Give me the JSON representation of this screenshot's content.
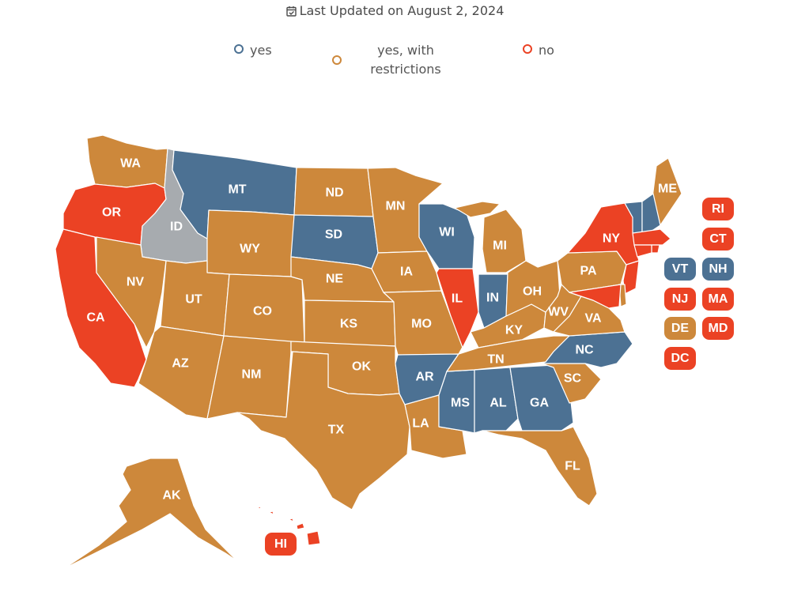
{
  "header": {
    "updated_text": "Last Updated on August 2, 2024"
  },
  "colors": {
    "yes": "#4c7193",
    "restricted": "#cd883b",
    "no": "#eb4224",
    "unknown": "#a7abaf"
  },
  "legend": {
    "yes": "yes",
    "restricted_line1": "yes, with",
    "restricted_line2": "restrictions",
    "no": "no"
  },
  "states": {
    "WA": "restricted",
    "OR": "no",
    "CA": "no",
    "ID": "unknown",
    "NV": "restricted",
    "MT": "yes",
    "WY": "restricted",
    "UT": "restricted",
    "AZ": "restricted",
    "CO": "restricted",
    "NM": "restricted",
    "ND": "restricted",
    "SD": "yes",
    "NE": "restricted",
    "KS": "restricted",
    "OK": "restricted",
    "TX": "restricted",
    "MN": "restricted",
    "IA": "restricted",
    "MO": "restricted",
    "AR": "yes",
    "LA": "restricted",
    "WI": "yes",
    "IL": "no",
    "MS": "yes",
    "MI": "restricted",
    "IN": "yes",
    "KY": "restricted",
    "TN": "restricted",
    "AL": "yes",
    "OH": "restricted",
    "WV": "restricted",
    "GA": "yes",
    "FL": "restricted",
    "SC": "restricted",
    "NC": "yes",
    "VA": "restricted",
    "PA": "restricted",
    "NY": "no",
    "ME": "restricted",
    "VT": "yes",
    "NH": "yes",
    "MA": "no",
    "RI": "no",
    "CT": "no",
    "NJ": "no",
    "DE": "restricted",
    "MD": "no",
    "DC": "no",
    "AK": "restricted",
    "HI": "no"
  },
  "labels": {
    "WA": "WA",
    "OR": "OR",
    "CA": "CA",
    "ID": "ID",
    "NV": "NV",
    "MT": "MT",
    "WY": "WY",
    "UT": "UT",
    "AZ": "AZ",
    "CO": "CO",
    "NM": "NM",
    "ND": "ND",
    "SD": "SD",
    "NE": "NE",
    "KS": "KS",
    "OK": "OK",
    "TX": "TX",
    "MN": "MN",
    "IA": "IA",
    "MO": "MO",
    "AR": "AR",
    "LA": "LA",
    "WI": "WI",
    "IL": "IL",
    "MS": "MS",
    "MI": "MI",
    "IN": "IN",
    "KY": "KY",
    "TN": "TN",
    "AL": "AL",
    "OH": "OH",
    "WV": "WV",
    "GA": "GA",
    "FL": "FL",
    "SC": "SC",
    "NC": "NC",
    "VA": "VA",
    "PA": "PA",
    "NY": "NY",
    "ME": "ME",
    "AK": "AK",
    "VT": "VT",
    "NH": "NH",
    "MA": "MA",
    "RI": "RI",
    "CT": "CT",
    "NJ": "NJ",
    "DE": "DE",
    "MD": "MD",
    "DC": "DC",
    "HI": "HI"
  }
}
